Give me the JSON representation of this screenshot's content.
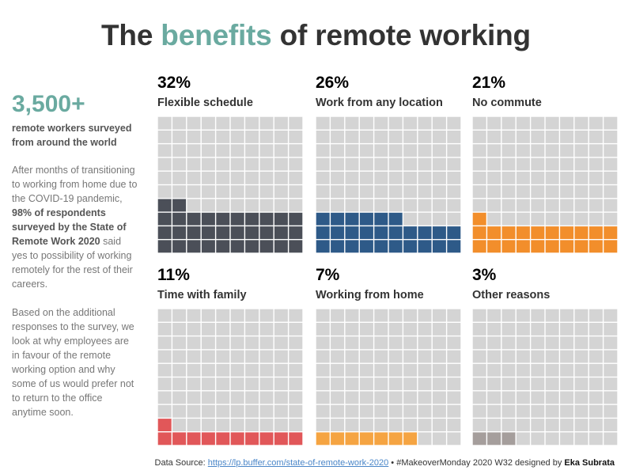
{
  "title": {
    "part1": "The ",
    "accent": "benefits",
    "part2": " of remote working"
  },
  "summary": {
    "big_number": "3,500+",
    "subtitle": "remote workers surveyed from around the world",
    "para1_pre": "After months of transitioning to working from home due to the COVID-19 pandemic, ",
    "para1_bold": "98% of respondents surveyed by the State of Remote Work 2020",
    "para1_post": " said yes to possibility of working remotely for the rest of their careers.",
    "para2": "Based on the additional responses to the survey, we look at why employees are in favour of the remote working option and why some of us would prefer not to return to the office anytime soon."
  },
  "colors": {
    "empty": "#d4d4d4",
    "accent": "#6aaaa0"
  },
  "chart_data": {
    "type": "waffle",
    "grid": {
      "rows": 10,
      "cols": 10
    },
    "series": [
      {
        "name": "Flexible schedule",
        "pct_label": "32%",
        "value": 32,
        "color": "#4b4f58"
      },
      {
        "name": "Work from any location",
        "pct_label": "26%",
        "value": 26,
        "color": "#2e5a88"
      },
      {
        "name": "No commute",
        "pct_label": "21%",
        "value": 21,
        "color": "#f28e2b"
      },
      {
        "name": "Time with family",
        "pct_label": "11%",
        "value": 11,
        "color": "#e15759"
      },
      {
        "name": "Working from home",
        "pct_label": "7%",
        "value": 7,
        "color": "#f5a442"
      },
      {
        "name": "Other reasons",
        "pct_label": "3%",
        "value": 3,
        "color": "#a59e9c"
      }
    ]
  },
  "footer": {
    "source_label": "Data Source: ",
    "source_link": "https://lp.buffer.com/state-of-remote-work-2020",
    "separator": " • ",
    "credit": "#MakeoverMonday 2020 W32 designed by ",
    "author": "Eka Subrata"
  }
}
